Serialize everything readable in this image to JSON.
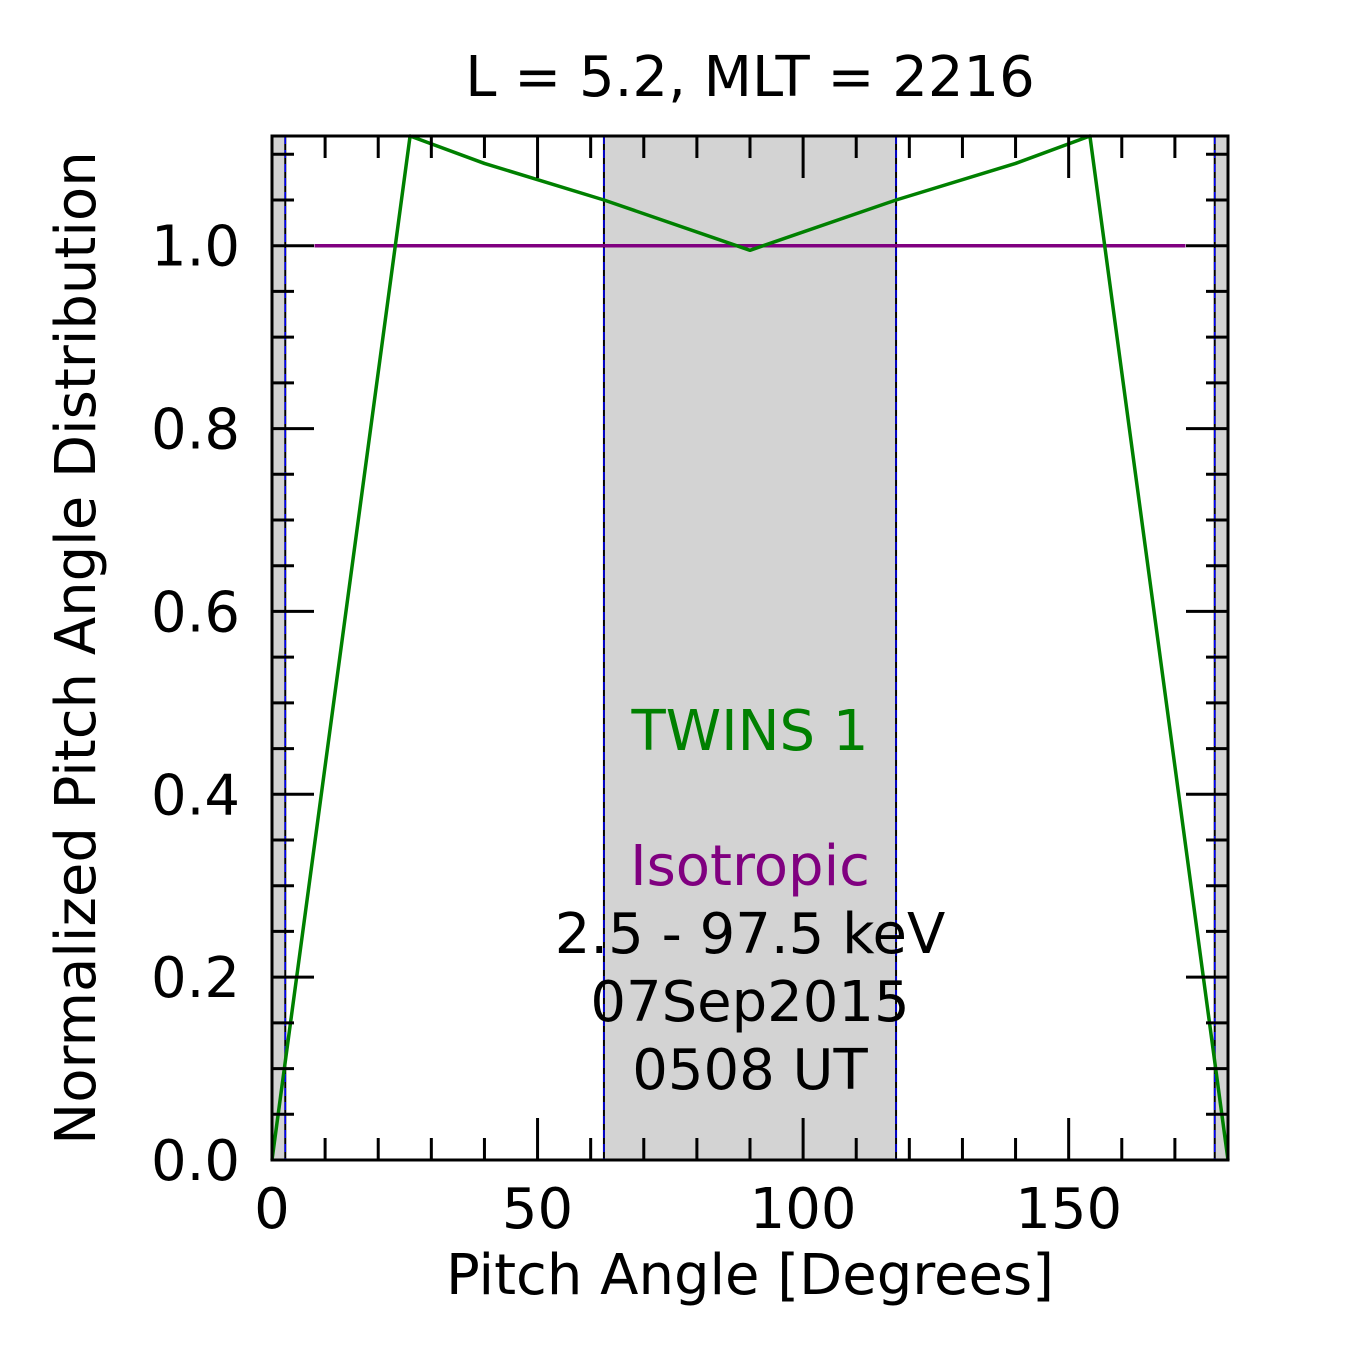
{
  "chart_data": {
    "type": "line",
    "title": "L =  5.2, MLT = 2216",
    "xlabel": "Pitch Angle [Degrees]",
    "ylabel": "Normalized Pitch Angle Distribution",
    "xlim": [
      0,
      180
    ],
    "ylim": [
      0,
      1.12
    ],
    "x_ticks": [
      "0",
      "50",
      "100",
      "150"
    ],
    "x_tick_values": [
      0,
      50,
      100,
      150
    ],
    "y_ticks": [
      "0.0",
      "0.2",
      "0.4",
      "0.6",
      "0.8",
      "1.0"
    ],
    "y_tick_values": [
      0,
      0.2,
      0.4,
      0.6,
      0.8,
      1.0
    ],
    "shaded_ranges": [
      [
        0,
        2.5
      ],
      [
        62.5,
        117.5
      ],
      [
        177.5,
        180
      ]
    ],
    "series": [
      {
        "name": "TWINS 1",
        "color": "#008000",
        "x": [
          0,
          26,
          40,
          62.5,
          90,
          117.5,
          140,
          154,
          180
        ],
        "y": [
          0,
          1.12,
          1.09,
          1.05,
          0.995,
          1.05,
          1.09,
          1.12,
          0
        ]
      },
      {
        "name": "Isotropic",
        "color": "#800080",
        "x": [
          8,
          172
        ],
        "y": [
          1.0,
          1.0
        ]
      }
    ],
    "annotations": {
      "series_labels": [
        "TWINS 1",
        "Isotropic"
      ],
      "energy": "2.5 - 97.5 keV",
      "date": "07Sep2015",
      "time": "0508 UT"
    },
    "grid": false
  }
}
